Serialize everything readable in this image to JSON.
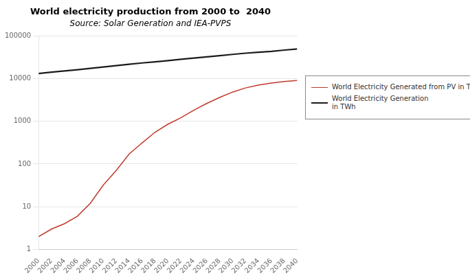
{
  "chart_data": {
    "type": "line",
    "title": "World electricity production from 2000 to  2040",
    "subtitle": "Source: Solar Generation and IEA-PVPS",
    "x": [
      2000,
      2002,
      2004,
      2006,
      2008,
      2010,
      2012,
      2014,
      2016,
      2018,
      2020,
      2022,
      2024,
      2026,
      2028,
      2030,
      2032,
      2034,
      2036,
      2038,
      2040
    ],
    "series": [
      {
        "name": "World Electricity Generated from PV in TWh",
        "color": "#c0392b",
        "values": [
          2,
          3,
          4,
          6,
          12,
          32,
          70,
          170,
          310,
          550,
          850,
          1200,
          1800,
          2600,
          3600,
          4800,
          6000,
          7000,
          7800,
          8500,
          9000
        ]
      },
      {
        "name": "World Electricity Generation\nin TWh",
        "color": "#1a1a1a",
        "values": [
          13000,
          14000,
          15000,
          16000,
          17200,
          18500,
          20000,
          21500,
          23000,
          24500,
          26000,
          28000,
          30000,
          32000,
          34000,
          36500,
          39000,
          41000,
          43000,
          46000,
          49000
        ]
      }
    ],
    "xlim": [
      2000,
      2040
    ],
    "xticks": [
      2000,
      2002,
      2004,
      2006,
      2008,
      2010,
      2012,
      2014,
      2016,
      2018,
      2020,
      2022,
      2024,
      2026,
      2028,
      2030,
      2032,
      2034,
      2036,
      2038,
      2040
    ],
    "ylim": [
      1,
      100000
    ],
    "yticks": [
      1,
      10,
      100,
      1000,
      10000,
      100000
    ],
    "log": "y",
    "grid": "y",
    "legend": "right"
  }
}
